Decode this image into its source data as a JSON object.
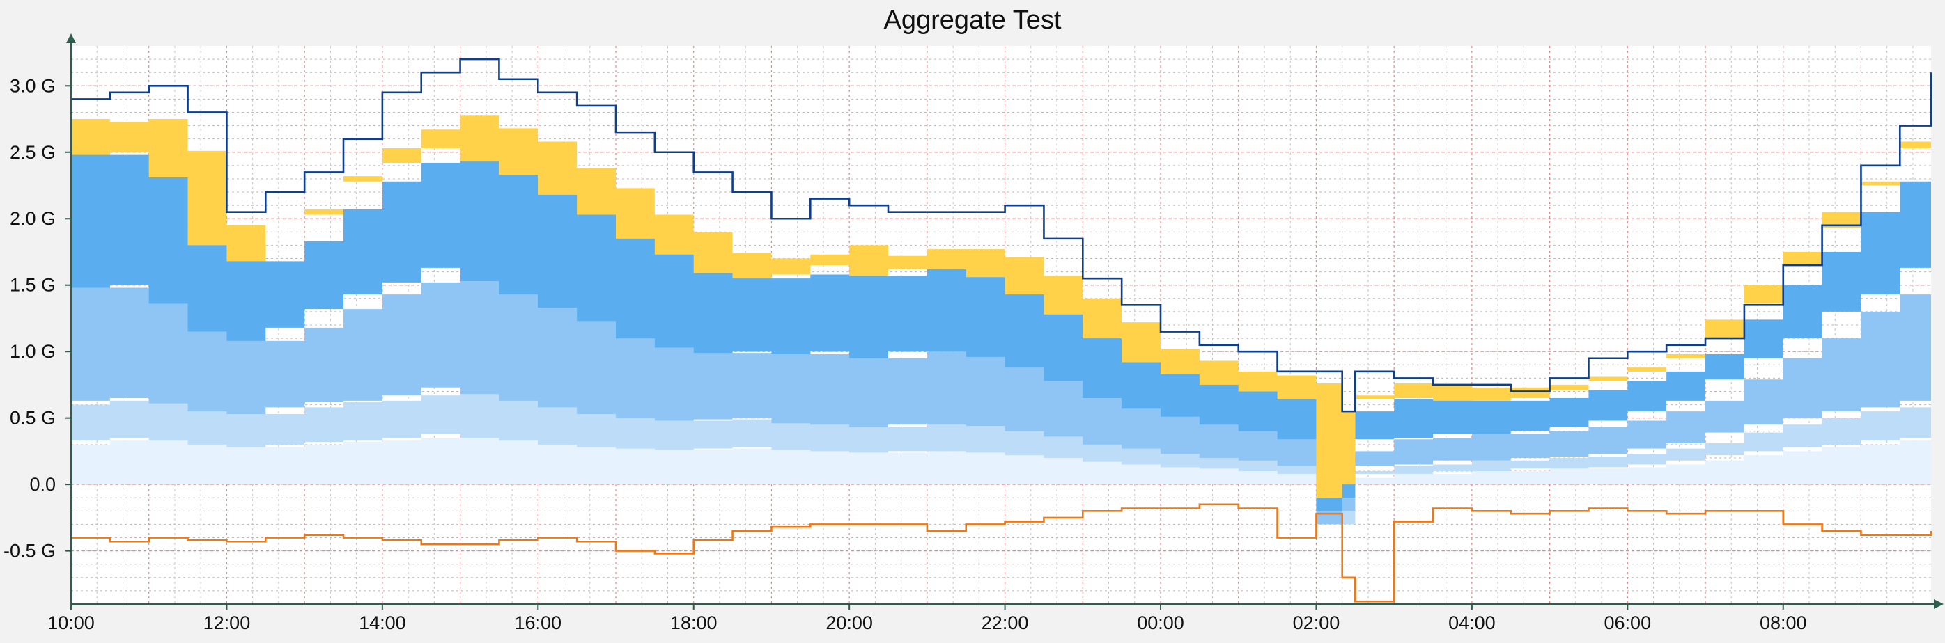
{
  "chart_data": {
    "type": "area",
    "title": "Aggregate Test",
    "xlabel": "",
    "ylabel": "",
    "x_axis": {
      "type": "time",
      "start": "10:00",
      "end": "09:54 (next day)",
      "tick_labels": [
        "10:00",
        "12:00",
        "14:00",
        "16:00",
        "18:00",
        "20:00",
        "22:00",
        "00:00",
        "02:00",
        "04:00",
        "06:00",
        "08:00"
      ],
      "tick_hours_since_start": [
        0,
        2,
        4,
        6,
        8,
        10,
        12,
        14,
        16,
        18,
        20,
        22
      ]
    },
    "y_axis": {
      "unit": "G",
      "range": [
        -0.9,
        3.3
      ],
      "tick_values": [
        3.0,
        2.5,
        2.0,
        1.5,
        1.0,
        0.5,
        0.0,
        -0.5
      ],
      "tick_labels": [
        "3.0 G",
        "2.5 G",
        "2.0 G",
        "1.5 G",
        "1.0 G",
        "0.5 G",
        "0.0",
        "-0.5 G"
      ]
    },
    "grid": "on",
    "x": [
      "10:00",
      "10:30",
      "11:00",
      "11:30",
      "12:00",
      "12:30",
      "13:00",
      "13:30",
      "14:00",
      "14:30",
      "15:00",
      "15:30",
      "16:00",
      "16:30",
      "17:00",
      "17:30",
      "18:00",
      "18:30",
      "19:00",
      "19:30",
      "20:00",
      "20:30",
      "21:00",
      "21:30",
      "22:00",
      "22:30",
      "23:00",
      "23:30",
      "00:00",
      "00:30",
      "01:00",
      "01:30",
      "02:00",
      "02:20",
      "02:30",
      "03:00",
      "03:30",
      "04:00",
      "04:30",
      "05:00",
      "05:30",
      "06:00",
      "06:30",
      "07:00",
      "07:30",
      "08:00",
      "08:30",
      "09:00",
      "09:30",
      "09:54"
    ],
    "series": [
      {
        "color": "#e6f2fd",
        "values": [
          0.3,
          0.33,
          0.35,
          0.33,
          0.3,
          0.28,
          0.3,
          0.32,
          0.33,
          0.35,
          0.38,
          0.35,
          0.33,
          0.3,
          0.28,
          0.27,
          0.26,
          0.27,
          0.28,
          0.26,
          0.25,
          0.24,
          0.25,
          0.25,
          0.24,
          0.22,
          0.2,
          0.17,
          0.15,
          0.13,
          0.12,
          0.1,
          0.08,
          -0.2,
          0.05,
          0.08,
          0.08,
          0.1,
          0.1,
          0.12,
          0.12,
          0.13,
          0.15,
          0.18,
          0.22,
          0.25,
          0.28,
          0.3,
          0.33,
          0.35
        ]
      },
      {
        "color": "#bcdcf8",
        "values": [
          0.3,
          0.3,
          0.3,
          0.28,
          0.25,
          0.25,
          0.28,
          0.3,
          0.3,
          0.32,
          0.35,
          0.33,
          0.3,
          0.28,
          0.25,
          0.23,
          0.22,
          0.22,
          0.22,
          0.2,
          0.2,
          0.19,
          0.2,
          0.2,
          0.2,
          0.18,
          0.16,
          0.13,
          0.12,
          0.1,
          0.08,
          0.08,
          0.06,
          -0.1,
          0.05,
          0.06,
          0.07,
          0.08,
          0.08,
          0.08,
          0.09,
          0.1,
          0.12,
          0.13,
          0.17,
          0.2,
          0.22,
          0.25,
          0.25,
          0.28
        ]
      },
      {
        "color": "#8ec5f5",
        "values": [
          0.9,
          0.85,
          0.85,
          0.75,
          0.6,
          0.55,
          0.6,
          0.7,
          0.8,
          0.85,
          0.9,
          0.85,
          0.8,
          0.75,
          0.7,
          0.6,
          0.55,
          0.5,
          0.5,
          0.52,
          0.55,
          0.52,
          0.55,
          0.55,
          0.52,
          0.48,
          0.42,
          0.35,
          0.3,
          0.28,
          0.25,
          0.22,
          0.2,
          0.1,
          0.15,
          0.2,
          0.2,
          0.2,
          0.2,
          0.2,
          0.22,
          0.25,
          0.28,
          0.32,
          0.4,
          0.5,
          0.6,
          0.75,
          0.85,
          1.0
        ]
      },
      {
        "color": "#5aaef0",
        "values": [
          1.0,
          1.0,
          1.0,
          0.95,
          0.65,
          0.6,
          0.65,
          0.75,
          0.85,
          0.9,
          0.9,
          0.9,
          0.9,
          0.85,
          0.8,
          0.75,
          0.7,
          0.6,
          0.55,
          0.6,
          0.65,
          0.62,
          0.62,
          0.62,
          0.6,
          0.55,
          0.5,
          0.45,
          0.35,
          0.32,
          0.3,
          0.3,
          0.3,
          0.1,
          0.3,
          0.3,
          0.3,
          0.25,
          0.25,
          0.25,
          0.28,
          0.3,
          0.3,
          0.35,
          0.45,
          0.55,
          0.65,
          0.75,
          0.85,
          0.95
        ]
      },
      {
        "color": "#ffd24a",
        "values": [
          0.25,
          0.25,
          0.25,
          0.2,
          0.15,
          0.15,
          0.2,
          0.25,
          0.25,
          0.25,
          0.25,
          0.25,
          0.25,
          0.2,
          0.2,
          0.18,
          0.17,
          0.15,
          0.15,
          0.15,
          0.15,
          0.15,
          0.15,
          0.15,
          0.15,
          0.14,
          0.12,
          0.12,
          0.1,
          0.1,
          0.1,
          0.12,
          0.12,
          0.1,
          0.12,
          0.12,
          0.1,
          0.1,
          0.1,
          0.1,
          0.1,
          0.1,
          0.1,
          0.12,
          0.12,
          0.15,
          0.18,
          0.2,
          0.25,
          0.25
        ]
      },
      {
        "color": "#0d3f8f",
        "type": "line",
        "values": [
          2.9,
          2.95,
          3.0,
          2.8,
          2.05,
          2.2,
          2.35,
          2.6,
          2.95,
          3.1,
          3.2,
          3.05,
          2.95,
          2.85,
          2.65,
          2.5,
          2.35,
          2.2,
          2.0,
          2.15,
          2.1,
          2.05,
          2.05,
          2.05,
          2.1,
          1.85,
          1.55,
          1.35,
          1.15,
          1.05,
          1.0,
          0.85,
          0.85,
          0.55,
          0.85,
          0.8,
          0.75,
          0.75,
          0.7,
          0.8,
          0.95,
          1.0,
          1.05,
          1.1,
          1.35,
          1.65,
          1.95,
          2.4,
          2.7,
          3.1
        ]
      },
      {
        "color": "#f07814",
        "type": "line",
        "values": [
          -0.4,
          -0.43,
          -0.4,
          -0.42,
          -0.43,
          -0.4,
          -0.38,
          -0.4,
          -0.42,
          -0.45,
          -0.45,
          -0.42,
          -0.4,
          -0.43,
          -0.5,
          -0.52,
          -0.42,
          -0.35,
          -0.32,
          -0.3,
          -0.3,
          -0.3,
          -0.35,
          -0.3,
          -0.28,
          -0.25,
          -0.2,
          -0.18,
          -0.18,
          -0.15,
          -0.18,
          -0.4,
          -0.22,
          -0.7,
          -0.88,
          -0.28,
          -0.18,
          -0.2,
          -0.22,
          -0.2,
          -0.18,
          -0.2,
          -0.22,
          -0.2,
          -0.2,
          -0.3,
          -0.35,
          -0.38,
          -0.38,
          -0.35
        ]
      }
    ]
  }
}
